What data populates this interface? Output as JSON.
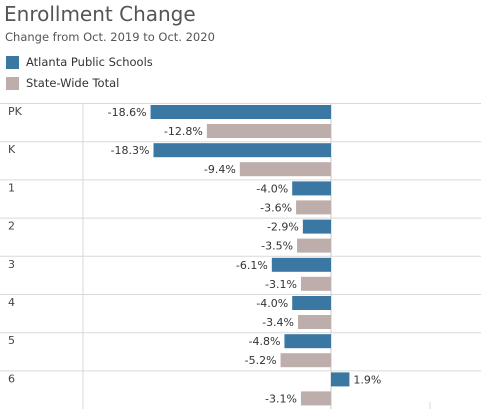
{
  "chart_data": {
    "type": "bar",
    "title": "Enrollment Change",
    "subtitle": "Change from Oct. 2019 to Oct. 2020",
    "categories": [
      "PK",
      "K",
      "1",
      "2",
      "3",
      "4",
      "5",
      "6"
    ],
    "series": [
      {
        "name": "Atlanta Public Schools",
        "color": "#3a77a2",
        "values": [
          -18.6,
          -18.3,
          -4.0,
          -2.9,
          -6.1,
          -4.0,
          -4.8,
          1.9
        ],
        "labels": [
          "-18.6%",
          "-18.3%",
          "-4.0%",
          "-2.9%",
          "-6.1%",
          "-4.0%",
          "-4.8%",
          "1.9%"
        ]
      },
      {
        "name": "State-Wide Total",
        "color": "#bdaeab",
        "values": [
          -12.8,
          -9.4,
          -3.6,
          -3.5,
          -3.1,
          -3.4,
          -5.2,
          -3.1
        ],
        "labels": [
          "-12.8%",
          "-9.4%",
          "-3.6%",
          "-3.5%",
          "-3.1%",
          "-3.4%",
          "-5.2%",
          "-3.1%"
        ]
      }
    ],
    "orientation": "horizontal",
    "xlim": [
      -22,
      8
    ],
    "legend": "top-left",
    "grid": false
  }
}
